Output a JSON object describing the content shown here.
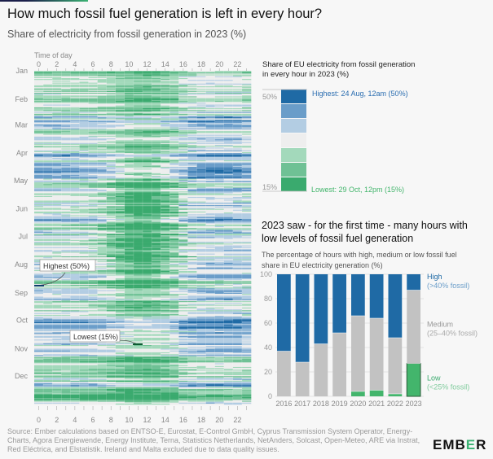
{
  "title": "How much fossil fuel generation is left in every hour?",
  "subtitle": "Share of electricity from fossil generation in 2023 (%)",
  "colors": {
    "bins": [
      "#1f6aa5",
      "#6a9dc9",
      "#b3cde3",
      "#eeeeee",
      "#a3d9bb",
      "#6fc195",
      "#3aaa6e"
    ],
    "high": "#1f6aa5",
    "medium": "#c2c2c2",
    "low": "#43b56c"
  },
  "heatmap": {
    "axis_title": "Time of day",
    "hour_ticks": [
      "0",
      "2",
      "4",
      "6",
      "8",
      "10",
      "12",
      "14",
      "16",
      "18",
      "20",
      "22"
    ],
    "months": [
      "Jan",
      "Feb",
      "Mar",
      "Apr",
      "May",
      "Jun",
      "Jul",
      "Aug",
      "Sep",
      "Oct",
      "Nov",
      "Dec"
    ],
    "annotation_high": "Highest (50%)",
    "annotation_low": "Lowest (15%)",
    "range_percent": [
      15,
      50
    ]
  },
  "scale_legend": {
    "title_line1": "Share of EU electricity from fossil generation",
    "title_line2": "in every hour in 2023 (%)",
    "max_label": "50%",
    "min_label": "15%",
    "highest": "Highest: 24 Aug, 12am (50%)",
    "lowest": "Lowest: 29 Oct, 12pm (15%)"
  },
  "bar_section": {
    "title_line1": "2023 saw - for the first time - many hours with",
    "title_line2": "low levels of fossil fuel generation",
    "desc_line1": "The percentage of hours with high, medium or low fossil fuel",
    "desc_line2": "share in EU electricity generation (%)"
  },
  "chart_data": {
    "type": "bar",
    "stacked": true,
    "categories": [
      "2016",
      "2017",
      "2018",
      "2019",
      "2020",
      "2021",
      "2022",
      "2023"
    ],
    "series": [
      {
        "name": "Low",
        "sub": "(<25% fossil)",
        "values": [
          0,
          0,
          0,
          0,
          4,
          5,
          2,
          27
        ]
      },
      {
        "name": "Medium",
        "sub": "(25–40% fossil)",
        "values": [
          37,
          28,
          43,
          52,
          62,
          59,
          46,
          60
        ]
      },
      {
        "name": "High",
        "sub": "(>40% fossil)",
        "values": [
          63,
          72,
          57,
          48,
          34,
          36,
          52,
          13
        ]
      }
    ],
    "yticks": [
      "0",
      "20",
      "40",
      "60",
      "80",
      "100"
    ],
    "ylim": [
      0,
      100
    ],
    "ylabel": "",
    "xlabel": ""
  },
  "footer": {
    "line1": "Source: Ember calculations based on ENTSO-E, Eurostat, E-Control GmbH, Cyprus Transmission System Operator, Energy-",
    "line2": "Charts, Agora Energiewende, Energy Institute, Terna, Statistics Netherlands, NetAnders, Solcast, Open-Meteo, ARE via Instrat,",
    "line3": "Red Eléctrica, and Elstatistik. Ireland and Malta excluded due to data quality issues."
  },
  "logo": {
    "pre": "EMB",
    "e": "E",
    "post": "R"
  }
}
